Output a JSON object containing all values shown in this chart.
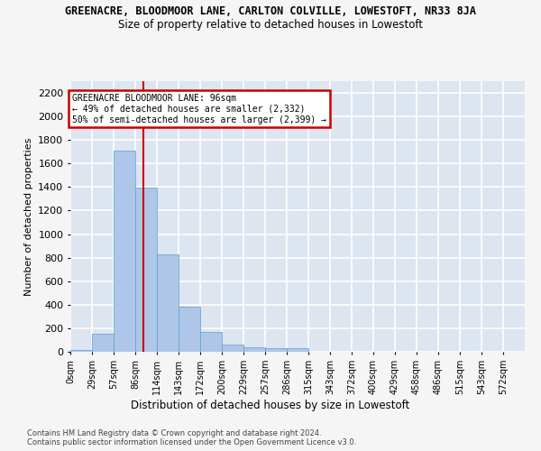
{
  "title": "GREENACRE, BLOODMOOR LANE, CARLTON COLVILLE, LOWESTOFT, NR33 8JA",
  "subtitle": "Size of property relative to detached houses in Lowestoft",
  "xlabel": "Distribution of detached houses by size in Lowestoft",
  "ylabel": "Number of detached properties",
  "footer1": "Contains HM Land Registry data © Crown copyright and database right 2024.",
  "footer2": "Contains public sector information licensed under the Open Government Licence v3.0.",
  "bar_labels": [
    "0sqm",
    "29sqm",
    "57sqm",
    "86sqm",
    "114sqm",
    "143sqm",
    "172sqm",
    "200sqm",
    "229sqm",
    "257sqm",
    "286sqm",
    "315sqm",
    "343sqm",
    "372sqm",
    "400sqm",
    "429sqm",
    "458sqm",
    "486sqm",
    "515sqm",
    "543sqm",
    "572sqm"
  ],
  "bar_values": [
    15,
    155,
    1710,
    1395,
    830,
    385,
    165,
    65,
    35,
    28,
    28,
    0,
    0,
    0,
    0,
    0,
    0,
    0,
    0,
    0,
    0
  ],
  "bar_color": "#aec6e8",
  "bar_edge_color": "#5a9fd4",
  "background_color": "#dde5f0",
  "grid_color": "#ffffff",
  "annotation_line1": "GREENACRE BLOODMOOR LANE: 96sqm",
  "annotation_line2": "← 49% of detached houses are smaller (2,332)",
  "annotation_line3": "50% of semi-detached houses are larger (2,399) →",
  "annotation_border_color": "#cc0000",
  "property_line_x": 96,
  "bin_width": 28.5,
  "ylim_max": 2300,
  "yticks": [
    0,
    200,
    400,
    600,
    800,
    1000,
    1200,
    1400,
    1600,
    1800,
    2000,
    2200
  ]
}
